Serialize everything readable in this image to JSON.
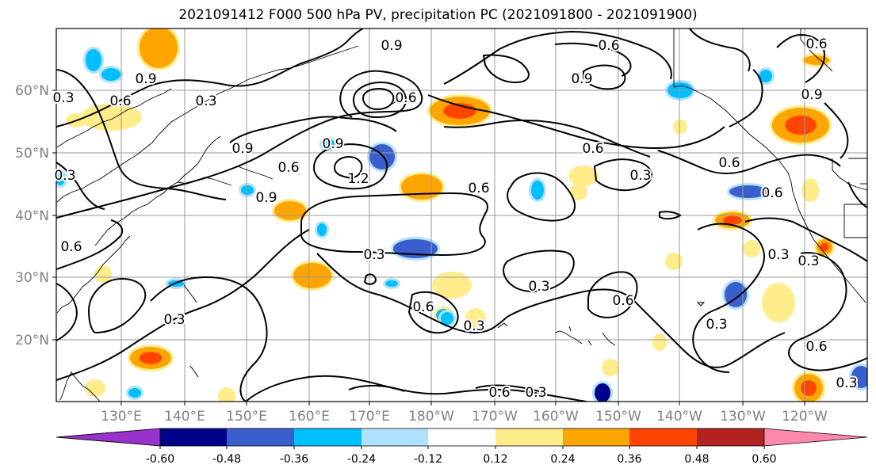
{
  "title": "2021091412 F000 500 hPa PV, precipitation PC (2021091800 - 2021091900)",
  "lat_labels": [
    "60°N",
    "50°N",
    "40°N",
    "30°N",
    "20°N"
  ],
  "lon_labels": [
    "130°E",
    "140°E",
    "150°E",
    "160°E",
    "170°E",
    "180°W",
    "170°W",
    "160°W",
    "150°W",
    "140°W",
    "130°W",
    "120°W"
  ],
  "contour_labels": [
    {
      "text": "0.9"
    },
    {
      "text": "0.6"
    },
    {
      "text": "0.3"
    },
    {
      "text": "0.6"
    },
    {
      "text": "0.9"
    },
    {
      "text": "0.3"
    },
    {
      "text": "0.9"
    },
    {
      "text": "0.9"
    },
    {
      "text": "0.6"
    },
    {
      "text": "1.2"
    },
    {
      "text": "0.9"
    },
    {
      "text": "0.6"
    },
    {
      "text": "0.6"
    },
    {
      "text": "0.3"
    },
    {
      "text": "0.6"
    },
    {
      "text": "0.3"
    },
    {
      "text": "0.6"
    },
    {
      "text": "0.3"
    },
    {
      "text": "0.3"
    },
    {
      "text": "0.6"
    },
    {
      "text": "0.3"
    },
    {
      "text": "0.6"
    },
    {
      "text": "0.3"
    },
    {
      "text": "0.3"
    },
    {
      "text": "0.6"
    },
    {
      "text": "0.3"
    },
    {
      "text": "0.6"
    },
    {
      "text": "0.3"
    },
    {
      "text": "0.3"
    },
    {
      "text": "0.6"
    },
    {
      "text": "0.6"
    },
    {
      "text": "0.9"
    },
    {
      "text": "0.6"
    },
    {
      "text": "0.9"
    },
    {
      "text": "0.3"
    }
  ],
  "colorbar": {
    "ticks": [
      "-0.60",
      "-0.48",
      "-0.36",
      "-0.24",
      "-0.12",
      "0.12",
      "0.24",
      "0.36",
      "0.48",
      "0.60"
    ],
    "colors": [
      "#9932cc",
      "#00008b",
      "#3a5fcd",
      "#00bfff",
      "#b0e2ff",
      "#ffffff",
      "#ffec8b",
      "#ffa500",
      "#ff4500",
      "#b22222",
      "#ff88aa"
    ]
  },
  "colors": {
    "grid": "#999999",
    "label": "#808080",
    "contour": "#000000"
  }
}
